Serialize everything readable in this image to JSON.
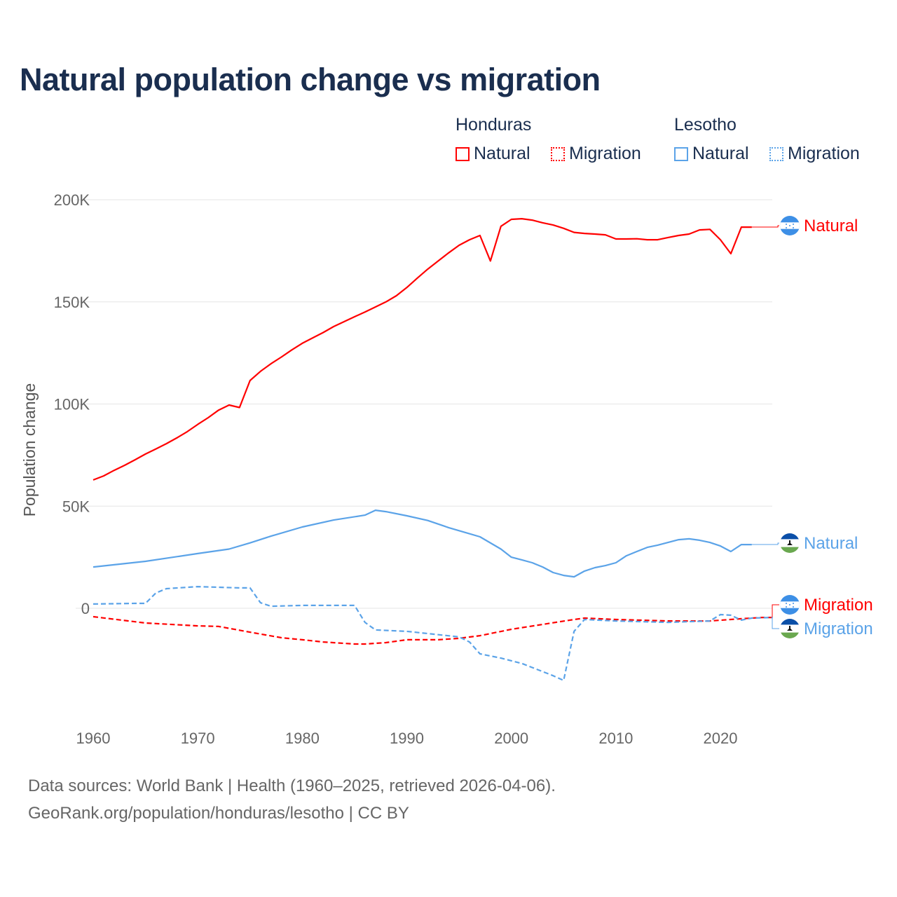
{
  "title": "Natural population change vs migration",
  "legend": {
    "groups": [
      {
        "name": "Honduras",
        "items": [
          {
            "label": "Natural",
            "style": "solid"
          },
          {
            "label": "Migration",
            "style": "dotted"
          }
        ],
        "color": "#ff0000"
      },
      {
        "name": "Lesotho",
        "items": [
          {
            "label": "Natural",
            "style": "solid"
          },
          {
            "label": "Migration",
            "style": "dotted"
          }
        ],
        "color": "#5ba3e8"
      }
    ]
  },
  "footer": {
    "line1": "Data sources: World Bank | Health (1960–2025, retrieved 2026-04-06).",
    "line2": "GeoRank.org/population/honduras/lesotho | CC BY"
  },
  "chart_data": {
    "type": "line",
    "title": "Natural population change vs migration",
    "xlabel": "",
    "ylabel": "Population change",
    "xlim": [
      1960,
      2025
    ],
    "ylim": [
      -45000,
      200000
    ],
    "x_ticks": [
      1960,
      1970,
      1980,
      1990,
      2000,
      2010,
      2020
    ],
    "y_ticks": [
      {
        "v": 0,
        "label": "0"
      },
      {
        "v": 50000,
        "label": "50K"
      },
      {
        "v": 100000,
        "label": "100K"
      },
      {
        "v": 150000,
        "label": "150K"
      },
      {
        "v": 200000,
        "label": "200K"
      }
    ],
    "grid": true,
    "legend_position": "top-right",
    "series": [
      {
        "name": "Honduras Natural",
        "end_label": "Natural",
        "country": "Honduras",
        "color": "#ff0000",
        "dash": false,
        "points": [
          [
            1960,
            62800
          ],
          [
            1961,
            64800
          ],
          [
            1962,
            67500
          ],
          [
            1963,
            70000
          ],
          [
            1964,
            72700
          ],
          [
            1965,
            75500
          ],
          [
            1966,
            78000
          ],
          [
            1967,
            80600
          ],
          [
            1968,
            83400
          ],
          [
            1969,
            86500
          ],
          [
            1970,
            90000
          ],
          [
            1971,
            93300
          ],
          [
            1972,
            97000
          ],
          [
            1973,
            99500
          ],
          [
            1974,
            98300
          ],
          [
            1975,
            111500
          ],
          [
            1976,
            116000
          ],
          [
            1977,
            119700
          ],
          [
            1978,
            123000
          ],
          [
            1979,
            126500
          ],
          [
            1980,
            129700
          ],
          [
            1981,
            132400
          ],
          [
            1982,
            135000
          ],
          [
            1983,
            137900
          ],
          [
            1984,
            140300
          ],
          [
            1985,
            142700
          ],
          [
            1986,
            145000
          ],
          [
            1987,
            147500
          ],
          [
            1988,
            150000
          ],
          [
            1989,
            153000
          ],
          [
            1990,
            157000
          ],
          [
            1991,
            161600
          ],
          [
            1992,
            166000
          ],
          [
            1993,
            170000
          ],
          [
            1994,
            174000
          ],
          [
            1995,
            177700
          ],
          [
            1996,
            180400
          ],
          [
            1997,
            182500
          ],
          [
            1998,
            170000
          ],
          [
            1999,
            187000
          ],
          [
            2000,
            190400
          ],
          [
            2001,
            190700
          ],
          [
            2002,
            190000
          ],
          [
            2003,
            188700
          ],
          [
            2004,
            187600
          ],
          [
            2005,
            186000
          ],
          [
            2006,
            184000
          ],
          [
            2007,
            183500
          ],
          [
            2008,
            183200
          ],
          [
            2009,
            182800
          ],
          [
            2010,
            180800
          ],
          [
            2011,
            180800
          ],
          [
            2012,
            180900
          ],
          [
            2013,
            180400
          ],
          [
            2014,
            180400
          ],
          [
            2015,
            181500
          ],
          [
            2016,
            182500
          ],
          [
            2017,
            183200
          ],
          [
            2018,
            185200
          ],
          [
            2019,
            185500
          ],
          [
            2020,
            180400
          ],
          [
            2021,
            173600
          ],
          [
            2022,
            186600
          ],
          [
            2023,
            186600
          ]
        ]
      },
      {
        "name": "Lesotho Natural",
        "end_label": "Natural",
        "country": "Lesotho",
        "color": "#5ba3e8",
        "dash": false,
        "points": [
          [
            1960,
            20200
          ],
          [
            1965,
            23000
          ],
          [
            1970,
            26800
          ],
          [
            1973,
            29000
          ],
          [
            1975,
            32000
          ],
          [
            1977,
            35300
          ],
          [
            1980,
            39800
          ],
          [
            1983,
            43200
          ],
          [
            1986,
            45600
          ],
          [
            1987,
            48000
          ],
          [
            1988,
            47300
          ],
          [
            1990,
            45300
          ],
          [
            1992,
            43000
          ],
          [
            1994,
            39500
          ],
          [
            1997,
            35000
          ],
          [
            1999,
            29000
          ],
          [
            2000,
            25000
          ],
          [
            2001,
            23700
          ],
          [
            2002,
            22300
          ],
          [
            2003,
            20200
          ],
          [
            2004,
            17500
          ],
          [
            2005,
            16100
          ],
          [
            2006,
            15400
          ],
          [
            2007,
            18200
          ],
          [
            2008,
            19900
          ],
          [
            2009,
            20900
          ],
          [
            2010,
            22300
          ],
          [
            2011,
            25700
          ],
          [
            2012,
            27800
          ],
          [
            2013,
            29800
          ],
          [
            2014,
            30900
          ],
          [
            2016,
            33600
          ],
          [
            2017,
            34000
          ],
          [
            2018,
            33300
          ],
          [
            2019,
            32200
          ],
          [
            2020,
            30500
          ],
          [
            2021,
            27800
          ],
          [
            2022,
            31200
          ],
          [
            2023,
            31200
          ]
        ]
      },
      {
        "name": "Honduras Migration",
        "end_label": "Migration",
        "country": "Honduras",
        "color": "#ff0000",
        "dash": true,
        "points": [
          [
            1960,
            -4100
          ],
          [
            1965,
            -7200
          ],
          [
            1970,
            -8600
          ],
          [
            1972,
            -8900
          ],
          [
            1975,
            -11700
          ],
          [
            1978,
            -14400
          ],
          [
            1980,
            -15400
          ],
          [
            1982,
            -16500
          ],
          [
            1985,
            -17500
          ],
          [
            1986,
            -17500
          ],
          [
            1988,
            -16800
          ],
          [
            1990,
            -15400
          ],
          [
            1993,
            -15400
          ],
          [
            1995,
            -14700
          ],
          [
            1997,
            -13400
          ],
          [
            2000,
            -10300
          ],
          [
            2003,
            -7900
          ],
          [
            2006,
            -5500
          ],
          [
            2007,
            -4800
          ],
          [
            2010,
            -5500
          ],
          [
            2015,
            -6200
          ],
          [
            2019,
            -6200
          ],
          [
            2022,
            -5100
          ],
          [
            2024,
            -4500
          ],
          [
            2025,
            -4500
          ]
        ]
      },
      {
        "name": "Lesotho Migration",
        "end_label": "Migration",
        "country": "Lesotho",
        "color": "#5ba3e8",
        "dash": true,
        "points": [
          [
            1960,
            2100
          ],
          [
            1964,
            2400
          ],
          [
            1965,
            2400
          ],
          [
            1966,
            7500
          ],
          [
            1967,
            9600
          ],
          [
            1970,
            10600
          ],
          [
            1974,
            10000
          ],
          [
            1975,
            10000
          ],
          [
            1976,
            2700
          ],
          [
            1977,
            1000
          ],
          [
            1980,
            1400
          ],
          [
            1985,
            1400
          ],
          [
            1986,
            -6900
          ],
          [
            1987,
            -10600
          ],
          [
            1990,
            -11300
          ],
          [
            1995,
            -14000
          ],
          [
            1996,
            -16500
          ],
          [
            1997,
            -22300
          ],
          [
            1999,
            -24400
          ],
          [
            2001,
            -27000
          ],
          [
            2004,
            -33000
          ],
          [
            2005,
            -35300
          ],
          [
            2006,
            -11300
          ],
          [
            2007,
            -5500
          ],
          [
            2010,
            -6200
          ],
          [
            2015,
            -6900
          ],
          [
            2019,
            -6200
          ],
          [
            2020,
            -3100
          ],
          [
            2021,
            -3400
          ],
          [
            2022,
            -5800
          ],
          [
            2023,
            -4800
          ],
          [
            2025,
            -4500
          ]
        ]
      }
    ]
  }
}
